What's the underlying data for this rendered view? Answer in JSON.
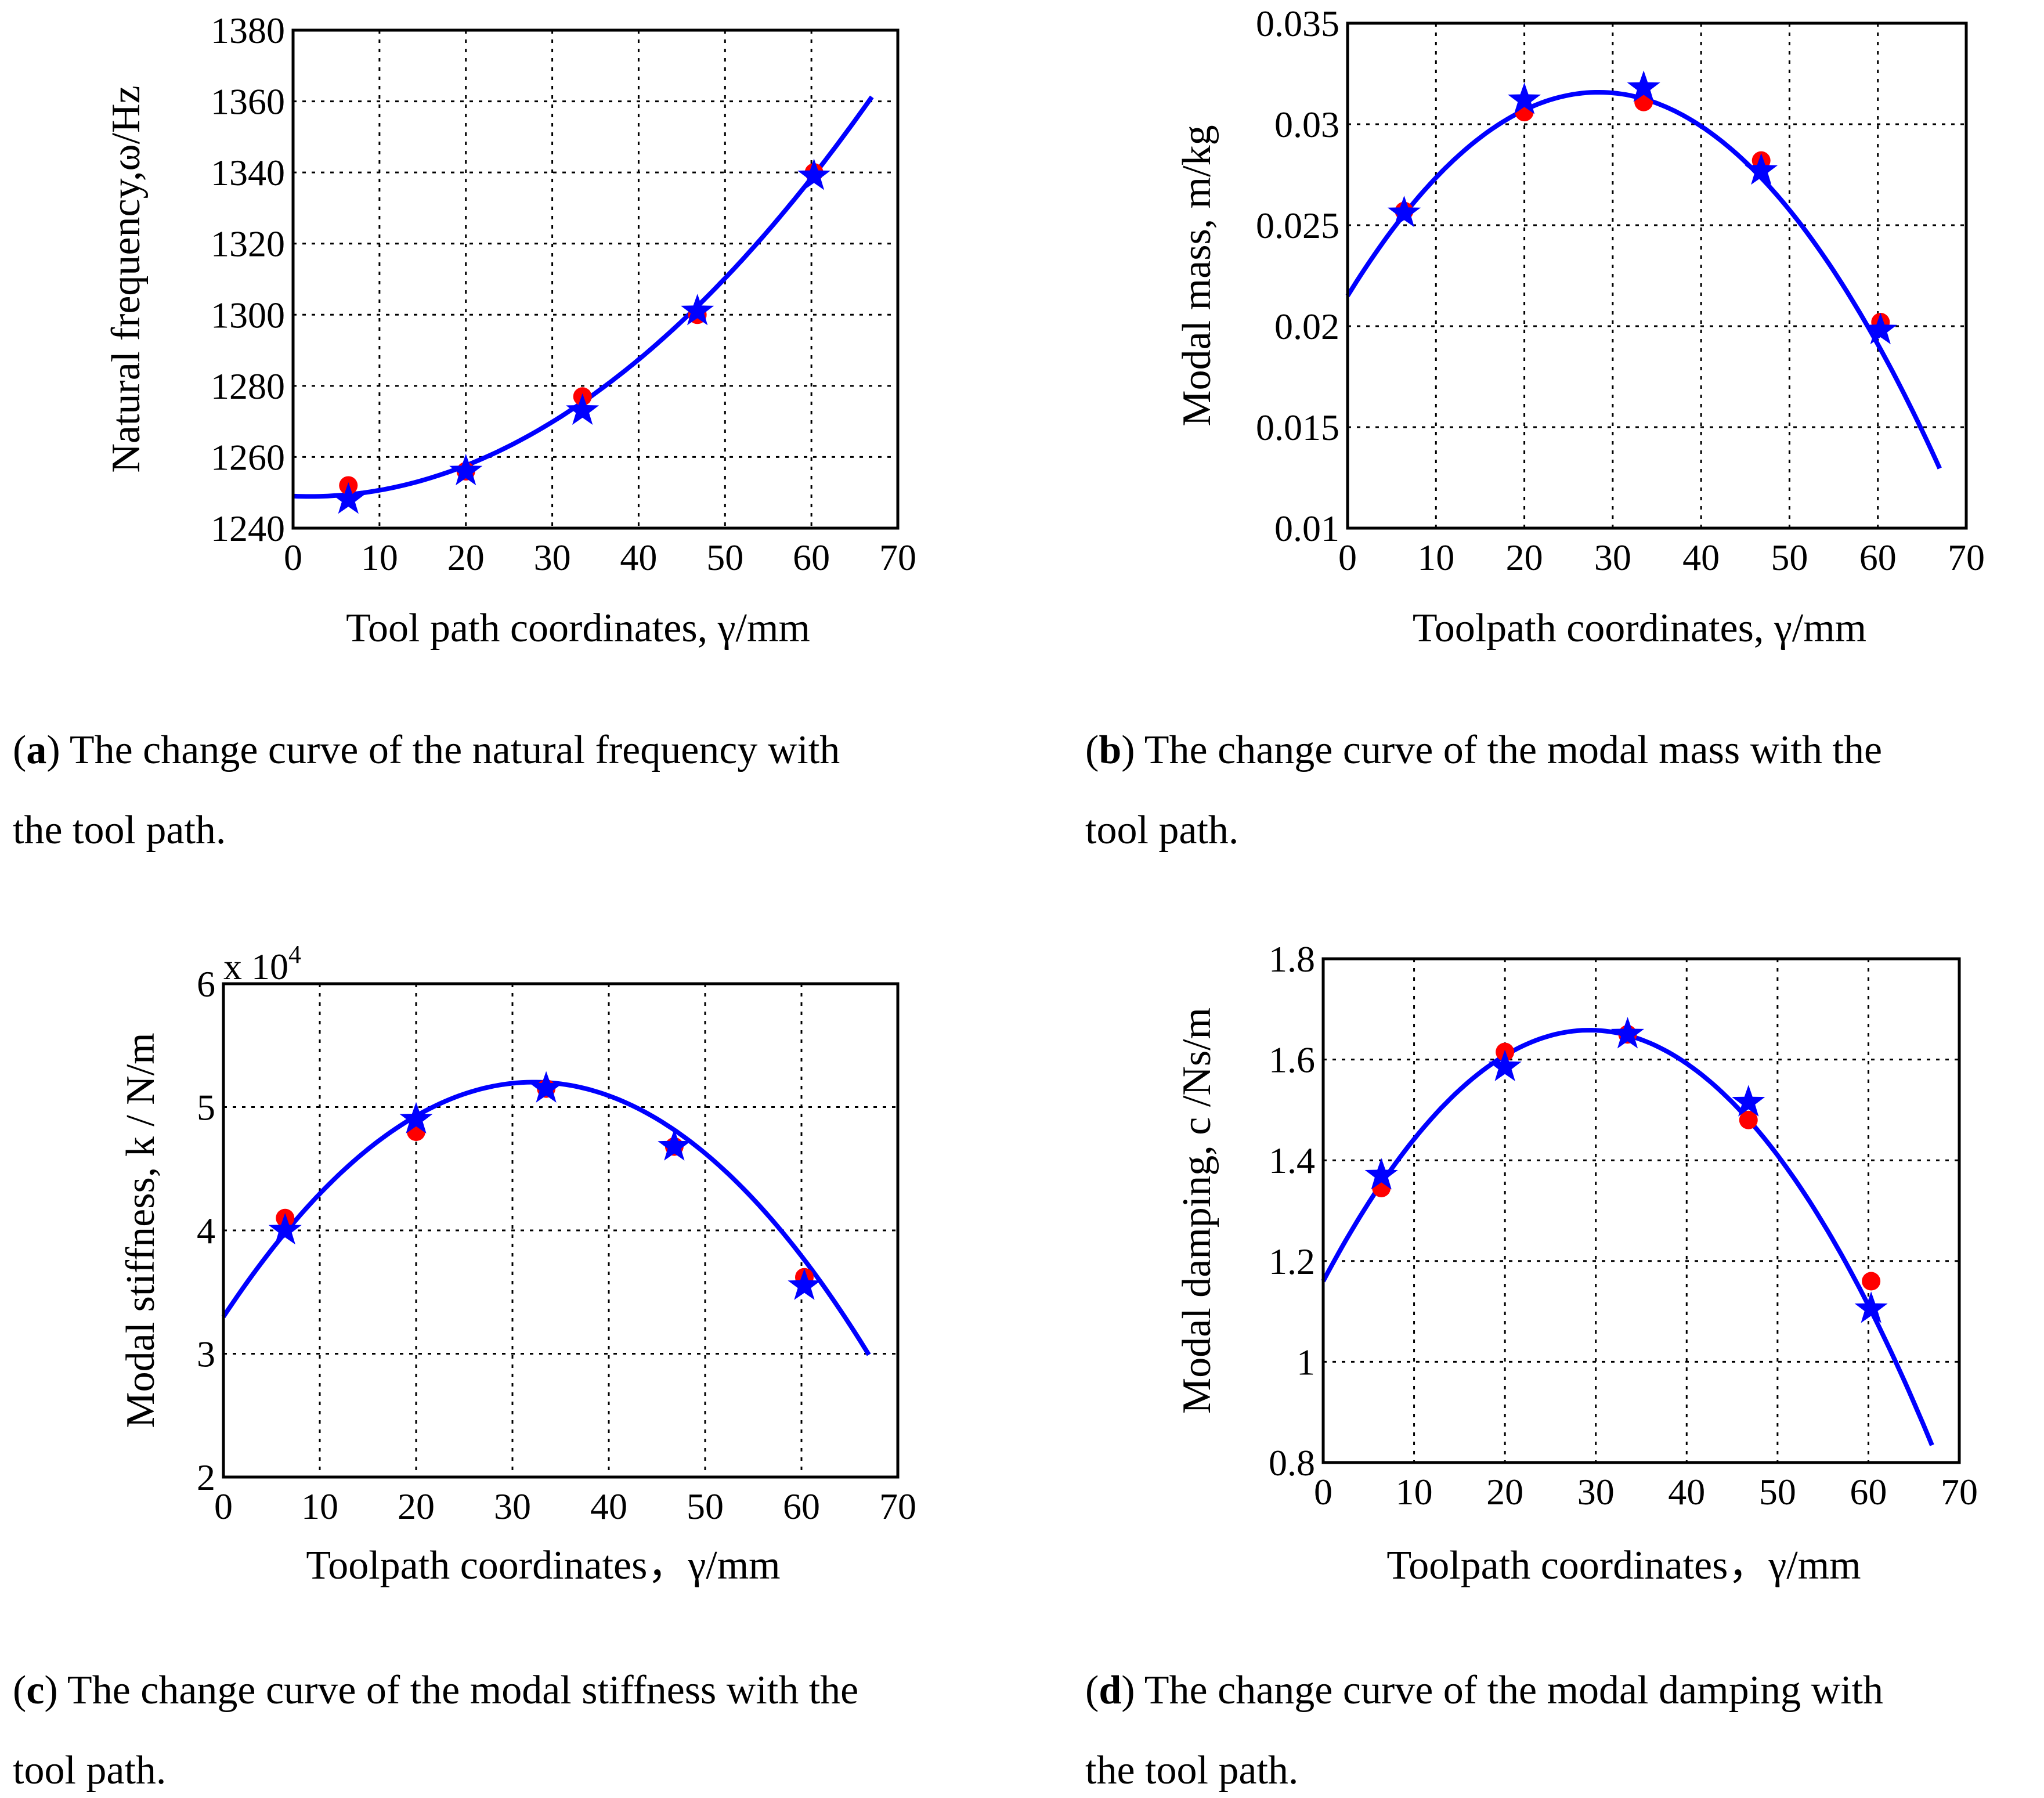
{
  "colors": {
    "fit_line": "#0000ff",
    "simulation_dot": "#ff0000",
    "experiment_star": "#0000ff",
    "axes": "#000000"
  },
  "chart_data": [
    {
      "id": "a",
      "type": "scatter",
      "caption_tag": "a",
      "caption_lines": [
        ") The change curve of the natural frequency with",
        "the tool path."
      ],
      "title": "",
      "xlabel": "Tool path coordinates, γ/mm",
      "ylabel": "Natural frequency,ω/Hz",
      "xlim": [
        0,
        70
      ],
      "ylim": [
        1240,
        1380
      ],
      "xticks": [
        "0",
        "10",
        "20",
        "30",
        "40",
        "50",
        "60",
        "70"
      ],
      "yticks": [
        "1240",
        "1260",
        "1280",
        "1300",
        "1320",
        "1340",
        "1360",
        "1380"
      ],
      "exponent_label": "",
      "fit_poly": [
        1249,
        -0.1,
        0.0265
      ],
      "fit_range": [
        0,
        67
      ],
      "series": [
        {
          "name": "red-dots",
          "marker": "circle",
          "x": [
            6.4,
            20,
            33.5,
            46.8,
            60.3
          ],
          "y": [
            1252,
            1256,
            1277,
            1300,
            1340
          ]
        },
        {
          "name": "blue-stars",
          "marker": "star",
          "x": [
            6.4,
            20,
            33.5,
            46.8,
            60.3
          ],
          "y": [
            1248,
            1256,
            1273,
            1301,
            1339
          ]
        }
      ]
    },
    {
      "id": "b",
      "type": "scatter",
      "caption_tag": "b",
      "caption_lines": [
        ") The change curve of the modal mass with the",
        "tool path."
      ],
      "title": "",
      "xlabel": "Toolpath coordinates, γ/mm",
      "ylabel": "Modal mass, m/kg",
      "xlim": [
        0,
        70
      ],
      "ylim": [
        0.01,
        0.035
      ],
      "xticks": [
        "0",
        "10",
        "20",
        "30",
        "40",
        "50",
        "60",
        "70"
      ],
      "yticks": [
        "0.01",
        "0.015",
        "0.02",
        "0.025",
        "0.03",
        "0.035"
      ],
      "exponent_label": "",
      "fit_poly": [
        0.0215,
        0.00071,
        -1.25e-05
      ],
      "fit_range": [
        0,
        67
      ],
      "series": [
        {
          "name": "red-dots",
          "marker": "circle",
          "x": [
            6.4,
            20,
            33.5,
            46.8,
            60.3
          ],
          "y": [
            0.0257,
            0.0306,
            0.0311,
            0.0282,
            0.0202
          ]
        },
        {
          "name": "blue-stars",
          "marker": "star",
          "x": [
            6.4,
            20,
            33.5,
            46.8,
            60.3
          ],
          "y": [
            0.0256,
            0.0312,
            0.0318,
            0.0277,
            0.0198
          ]
        }
      ]
    },
    {
      "id": "c",
      "type": "scatter",
      "caption_tag": "c",
      "caption_lines": [
        ") The change curve of the modal stiffness with the",
        "tool path."
      ],
      "title": "",
      "xlabel": "Toolpath coordinates，γ/mm",
      "ylabel": "Modal stiffness, k / N/m",
      "xlim": [
        0,
        70
      ],
      "ylim": [
        2,
        6
      ],
      "xticks": [
        "0",
        "10",
        "20",
        "30",
        "40",
        "50",
        "60",
        "70"
      ],
      "yticks": [
        "2",
        "3",
        "4",
        "5",
        "6"
      ],
      "exponent_label": "x 10",
      "exponent_power": "4",
      "fit_poly": [
        3.3,
        0.118,
        -0.00183
      ],
      "fit_range": [
        0,
        67
      ],
      "series": [
        {
          "name": "red-dots",
          "marker": "circle",
          "x": [
            6.4,
            20,
            33.5,
            46.8,
            60.3
          ],
          "y": [
            4.1,
            4.8,
            5.15,
            4.68,
            3.62
          ]
        },
        {
          "name": "blue-stars",
          "marker": "star",
          "x": [
            6.4,
            20,
            33.5,
            46.8,
            60.3
          ],
          "y": [
            4.0,
            4.9,
            5.15,
            4.68,
            3.55
          ]
        }
      ]
    },
    {
      "id": "d",
      "type": "scatter",
      "caption_tag": "d",
      "caption_lines": [
        ") The change curve of the modal damping with",
        "the tool path."
      ],
      "title": "",
      "xlabel": "Toolpath coordinates，γ/mm",
      "ylabel": "Modal damping, c /Ns/m",
      "xlim": [
        0,
        70
      ],
      "ylim": [
        0.8,
        1.8
      ],
      "xticks": [
        "0",
        "10",
        "20",
        "30",
        "40",
        "50",
        "60",
        "70"
      ],
      "yticks": [
        "0.8",
        "1",
        "1.2",
        "1.4",
        "1.6",
        "1.8"
      ],
      "exponent_label": "",
      "fit_poly": [
        1.16,
        0.034,
        -0.00058
      ],
      "fit_range": [
        0,
        67
      ],
      "series": [
        {
          "name": "red-dots",
          "marker": "circle",
          "x": [
            6.4,
            20,
            33.5,
            46.8,
            60.3
          ],
          "y": [
            1.345,
            1.615,
            1.65,
            1.48,
            1.16
          ]
        },
        {
          "name": "blue-stars",
          "marker": "star",
          "x": [
            6.4,
            20,
            33.5,
            46.8,
            60.3
          ],
          "y": [
            1.37,
            1.585,
            1.65,
            1.515,
            1.105
          ]
        }
      ]
    }
  ]
}
